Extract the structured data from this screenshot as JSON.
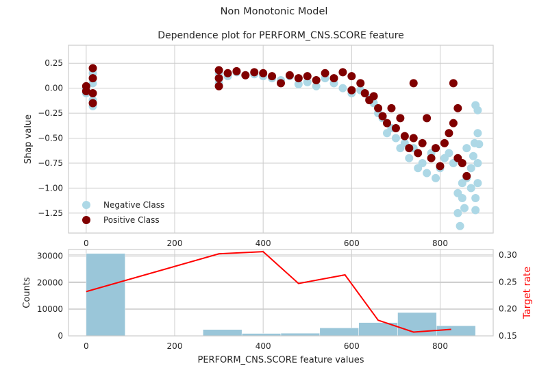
{
  "suptitle": "Non Monotonic Model",
  "chart_data": [
    {
      "type": "scatter",
      "title": "Dependence plot for PERFORM_CNS.SCORE feature",
      "xlabel": "",
      "ylabel": "Shap value",
      "xlim": [
        -40,
        920
      ],
      "ylim": [
        -1.45,
        0.43
      ],
      "xticks": [
        0,
        200,
        400,
        600,
        800
      ],
      "yticks": [
        -1.25,
        -1.0,
        -0.75,
        -0.5,
        -0.25,
        0.0,
        0.25
      ],
      "ytick_labels": [
        "−1.25",
        "−1.00",
        "−0.75",
        "−0.50",
        "−0.25",
        "0.00",
        "0.25"
      ],
      "grid": true,
      "legend_placement": "lower-left",
      "series": [
        {
          "name": "Negative Class",
          "color": "#add8e6",
          "points": [
            [
              0,
              0.0
            ],
            [
              0,
              -0.05
            ],
            [
              15,
              0.15
            ],
            [
              15,
              -0.12
            ],
            [
              15,
              0.05
            ],
            [
              15,
              -0.18
            ],
            [
              300,
              0.15
            ],
            [
              300,
              0.05
            ],
            [
              320,
              0.12
            ],
            [
              340,
              0.16
            ],
            [
              360,
              0.13
            ],
            [
              380,
              0.14
            ],
            [
              400,
              0.12
            ],
            [
              420,
              0.1
            ],
            [
              440,
              0.08
            ],
            [
              460,
              0.12
            ],
            [
              480,
              0.04
            ],
            [
              500,
              0.06
            ],
            [
              520,
              0.02
            ],
            [
              540,
              0.1
            ],
            [
              560,
              0.05
            ],
            [
              580,
              0.0
            ],
            [
              600,
              -0.05
            ],
            [
              620,
              -0.02
            ],
            [
              640,
              -0.1
            ],
            [
              650,
              -0.15
            ],
            [
              660,
              -0.25
            ],
            [
              670,
              -0.3
            ],
            [
              680,
              -0.45
            ],
            [
              690,
              -0.4
            ],
            [
              700,
              -0.5
            ],
            [
              710,
              -0.6
            ],
            [
              720,
              -0.55
            ],
            [
              730,
              -0.7
            ],
            [
              740,
              -0.6
            ],
            [
              750,
              -0.8
            ],
            [
              760,
              -0.75
            ],
            [
              770,
              -0.85
            ],
            [
              780,
              -0.65
            ],
            [
              790,
              -0.9
            ],
            [
              800,
              -0.8
            ],
            [
              810,
              -0.7
            ],
            [
              820,
              -0.65
            ],
            [
              830,
              -0.75
            ],
            [
              840,
              -1.05
            ],
            [
              840,
              -1.25
            ],
            [
              845,
              -1.38
            ],
            [
              850,
              -1.1
            ],
            [
              850,
              -0.95
            ],
            [
              855,
              -1.2
            ],
            [
              860,
              -0.9
            ],
            [
              860,
              -0.6
            ],
            [
              870,
              -1.0
            ],
            [
              870,
              -0.8
            ],
            [
              875,
              -0.68
            ],
            [
              878,
              -0.55
            ],
            [
              880,
              -1.22
            ],
            [
              880,
              -1.1
            ],
            [
              880,
              -0.17
            ],
            [
              885,
              -0.45
            ],
            [
              885,
              -0.75
            ],
            [
              885,
              -0.95
            ],
            [
              885,
              -0.22
            ],
            [
              888,
              -0.56
            ]
          ]
        },
        {
          "name": "Positive Class",
          "color": "#800000",
          "points": [
            [
              0,
              0.02
            ],
            [
              0,
              -0.03
            ],
            [
              15,
              0.2
            ],
            [
              15,
              0.1
            ],
            [
              15,
              -0.15
            ],
            [
              15,
              -0.05
            ],
            [
              300,
              0.18
            ],
            [
              300,
              0.1
            ],
            [
              300,
              0.02
            ],
            [
              320,
              0.15
            ],
            [
              340,
              0.17
            ],
            [
              360,
              0.13
            ],
            [
              380,
              0.16
            ],
            [
              400,
              0.15
            ],
            [
              420,
              0.12
            ],
            [
              440,
              0.05
            ],
            [
              460,
              0.13
            ],
            [
              480,
              0.1
            ],
            [
              500,
              0.12
            ],
            [
              520,
              0.08
            ],
            [
              540,
              0.15
            ],
            [
              560,
              0.1
            ],
            [
              580,
              0.16
            ],
            [
              600,
              0.12
            ],
            [
              600,
              -0.02
            ],
            [
              620,
              0.05
            ],
            [
              630,
              -0.05
            ],
            [
              640,
              -0.12
            ],
            [
              650,
              -0.08
            ],
            [
              660,
              -0.2
            ],
            [
              670,
              -0.28
            ],
            [
              680,
              -0.35
            ],
            [
              690,
              -0.2
            ],
            [
              700,
              -0.4
            ],
            [
              710,
              -0.3
            ],
            [
              720,
              -0.48
            ],
            [
              730,
              -0.6
            ],
            [
              740,
              -0.5
            ],
            [
              740,
              0.05
            ],
            [
              750,
              -0.65
            ],
            [
              760,
              -0.55
            ],
            [
              770,
              -0.3
            ],
            [
              780,
              -0.7
            ],
            [
              790,
              -0.6
            ],
            [
              800,
              -0.78
            ],
            [
              810,
              -0.55
            ],
            [
              820,
              -0.45
            ],
            [
              830,
              -0.35
            ],
            [
              830,
              0.05
            ],
            [
              840,
              -0.7
            ],
            [
              840,
              -0.2
            ],
            [
              850,
              -0.75
            ],
            [
              860,
              -0.88
            ]
          ]
        }
      ]
    },
    {
      "type": "bar",
      "xlabel": "PERFORM_CNS.SCORE feature values",
      "ylabel": "Counts",
      "y2label": "Target rate",
      "xlim": [
        -40,
        920
      ],
      "ylim": [
        0,
        32500
      ],
      "y2lim": [
        0.15,
        0.31
      ],
      "xticks": [
        0,
        200,
        400,
        600,
        800
      ],
      "yticks": [
        0,
        10000,
        20000,
        30000
      ],
      "y2ticks": [
        0.15,
        0.2,
        0.25,
        0.3
      ],
      "y2tick_labels": [
        "0.15",
        "0.20",
        "0.25",
        "0.30"
      ],
      "grid": true,
      "bar_color": "#9ac6d9",
      "line_color": "#ff0000",
      "bins": [
        {
          "x0": 0,
          "x1": 88,
          "count": 31000
        },
        {
          "x0": 88,
          "x1": 176,
          "count": 0
        },
        {
          "x0": 176,
          "x1": 264,
          "count": 0
        },
        {
          "x0": 264,
          "x1": 352,
          "count": 2400
        },
        {
          "x0": 352,
          "x1": 440,
          "count": 900
        },
        {
          "x0": 440,
          "x1": 528,
          "count": 1000
        },
        {
          "x0": 528,
          "x1": 616,
          "count": 3000
        },
        {
          "x0": 616,
          "x1": 704,
          "count": 5000
        },
        {
          "x0": 704,
          "x1": 792,
          "count": 8800
        },
        {
          "x0": 792,
          "x1": 880,
          "count": 3800
        }
      ],
      "target_rate": {
        "x": [
          0,
          300,
          400,
          480,
          585,
          660,
          740,
          825
        ],
        "y": [
          0.232,
          0.302,
          0.306,
          0.247,
          0.263,
          0.179,
          0.157,
          0.162
        ]
      }
    }
  ]
}
